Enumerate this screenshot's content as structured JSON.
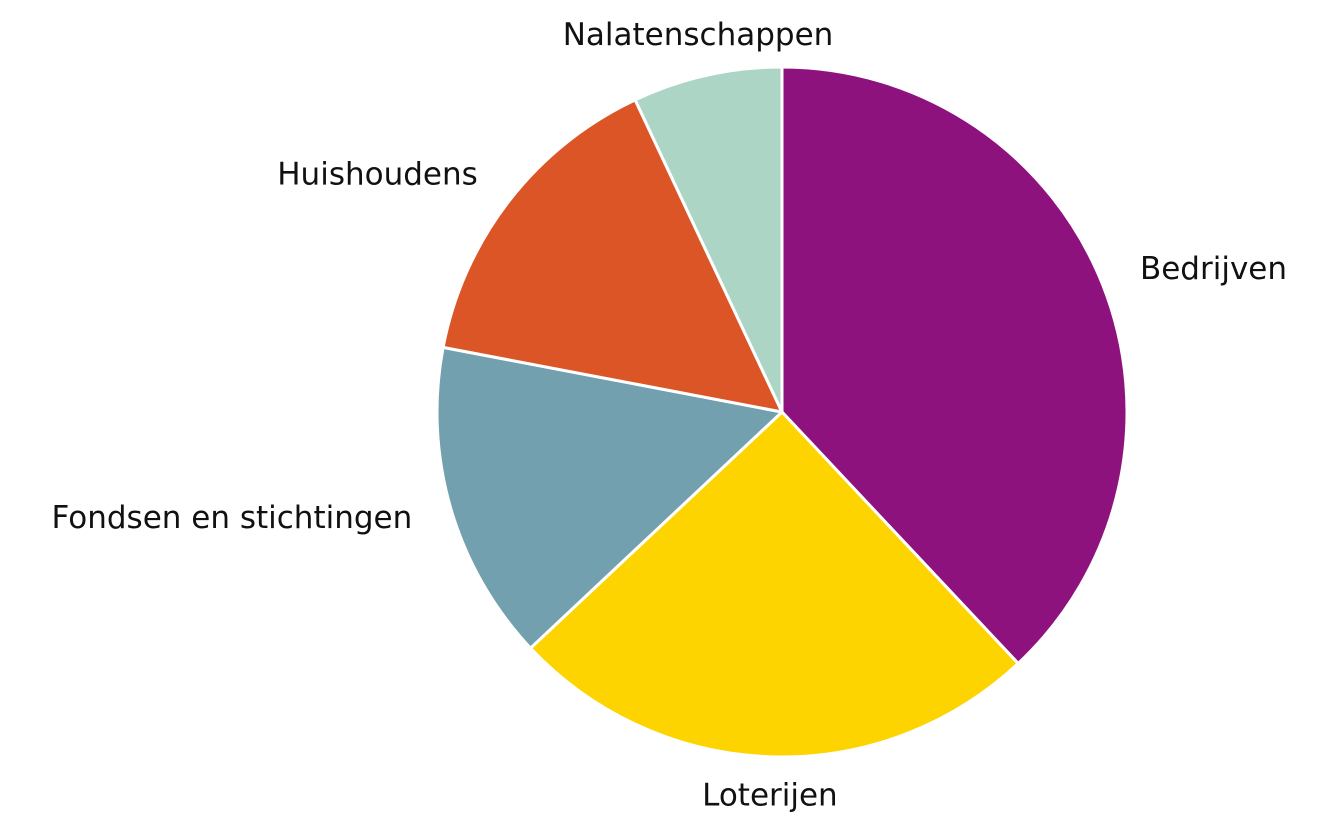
{
  "chart_data": {
    "type": "pie",
    "categories": [
      "Bedrijven",
      "Loterijen",
      "Fondsen en stichtingen",
      "Huishoudens",
      "Nalatenschappen"
    ],
    "values": [
      38,
      25,
      15,
      15,
      7
    ],
    "colors": [
      "#8e127e",
      "#fdd400",
      "#73a0ae",
      "#dc5527",
      "#acd5c6"
    ],
    "start_angle": 90,
    "direction": "clockwise"
  }
}
